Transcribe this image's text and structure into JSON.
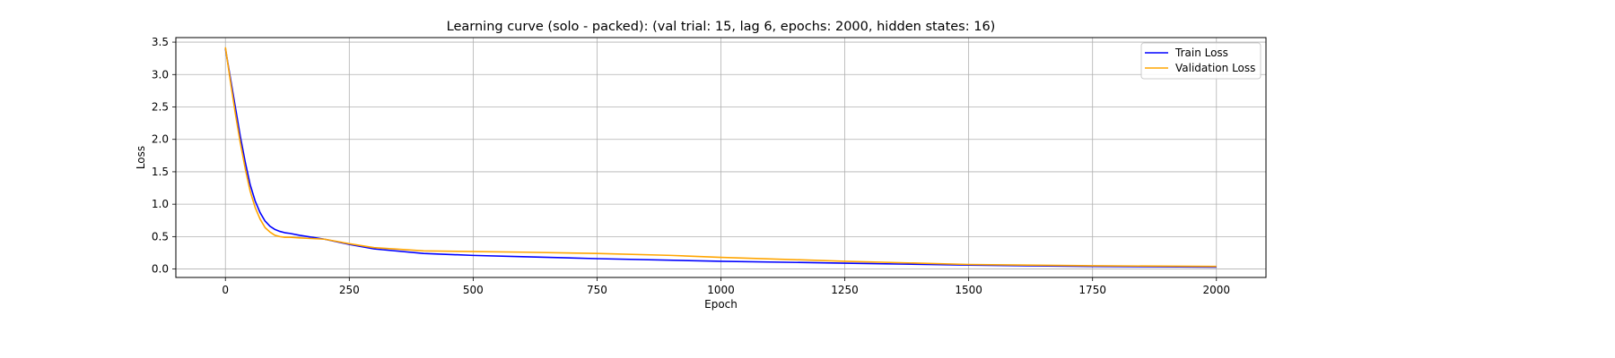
{
  "chart_data": {
    "type": "line",
    "title": "Learning curve (solo - packed): (val trial: 15, lag 6, epochs: 2000, hidden states: 16)",
    "xlabel": "Epoch",
    "ylabel": "Loss",
    "xlim": [
      -100,
      2100
    ],
    "ylim": [
      -0.13,
      3.57
    ],
    "xticks": [
      0,
      250,
      500,
      750,
      1000,
      1250,
      1500,
      1750,
      2000
    ],
    "yticks": [
      0.0,
      0.5,
      1.0,
      1.5,
      2.0,
      2.5,
      3.0,
      3.5
    ],
    "xtick_labels": [
      "0",
      "250",
      "500",
      "750",
      "1000",
      "1250",
      "1500",
      "1750",
      "2000"
    ],
    "ytick_labels": [
      "0.0",
      "0.5",
      "1.0",
      "1.5",
      "2.0",
      "2.5",
      "3.0",
      "3.5"
    ],
    "grid": true,
    "legend_position": "top-right",
    "series": [
      {
        "name": "Train Loss",
        "color": "#0000ff",
        "x": [
          0,
          10,
          20,
          30,
          40,
          50,
          60,
          70,
          80,
          90,
          100,
          110,
          120,
          130,
          150,
          200,
          250,
          300,
          400,
          500,
          600,
          750,
          1000,
          1250,
          1500,
          1750,
          2000
        ],
        "y": [
          3.4,
          2.95,
          2.5,
          2.05,
          1.65,
          1.3,
          1.05,
          0.87,
          0.74,
          0.66,
          0.61,
          0.58,
          0.56,
          0.55,
          0.52,
          0.46,
          0.38,
          0.31,
          0.24,
          0.21,
          0.19,
          0.16,
          0.12,
          0.09,
          0.06,
          0.04,
          0.03
        ]
      },
      {
        "name": "Validation Loss",
        "color": "#ffa500",
        "x": [
          0,
          10,
          20,
          30,
          40,
          50,
          60,
          70,
          80,
          90,
          100,
          110,
          120,
          130,
          150,
          200,
          250,
          300,
          400,
          500,
          600,
          750,
          900,
          1000,
          1250,
          1500,
          1750,
          2000
        ],
        "y": [
          3.42,
          2.9,
          2.4,
          1.95,
          1.55,
          1.2,
          0.95,
          0.77,
          0.64,
          0.57,
          0.52,
          0.5,
          0.49,
          0.49,
          0.48,
          0.46,
          0.39,
          0.33,
          0.28,
          0.27,
          0.26,
          0.24,
          0.21,
          0.18,
          0.12,
          0.07,
          0.05,
          0.04
        ]
      }
    ]
  }
}
